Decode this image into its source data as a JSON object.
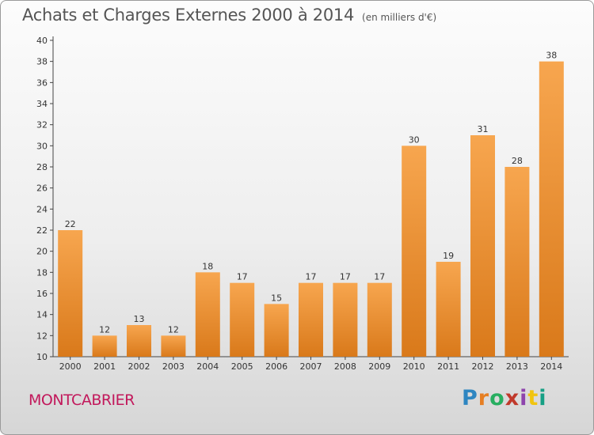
{
  "header": {
    "title": "Achats et Charges Externes 2000 à 2014",
    "unit": "(en milliers d'€)"
  },
  "footer": {
    "place": "MONTCABRIER",
    "brand": "Proxiti"
  },
  "colors": {
    "bar_light": "#f7a64f",
    "bar_dark": "#d9791a",
    "place": "#c2185b"
  },
  "chart_data": {
    "type": "bar",
    "title": "Achats et Charges Externes 2000 à 2014",
    "subtitle": "(en milliers d'€)",
    "xlabel": "",
    "ylabel": "",
    "ylim": [
      10,
      40
    ],
    "yticks": [
      10,
      12,
      14,
      16,
      18,
      20,
      22,
      24,
      26,
      28,
      30,
      32,
      34,
      36,
      38,
      40
    ],
    "grid": false,
    "categories": [
      "2000",
      "2001",
      "2002",
      "2003",
      "2004",
      "2005",
      "2006",
      "2007",
      "2008",
      "2009",
      "2010",
      "2011",
      "2012",
      "2013",
      "2014"
    ],
    "values": [
      22,
      12,
      13,
      12,
      18,
      17,
      15,
      17,
      17,
      17,
      30,
      19,
      31,
      28,
      38
    ]
  }
}
